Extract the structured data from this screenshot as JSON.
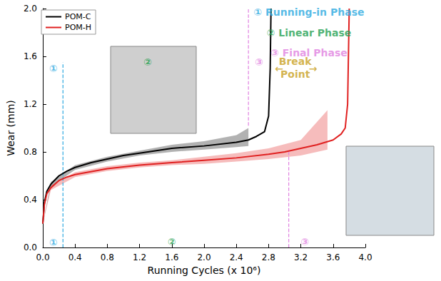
{
  "chart_data": {
    "type": "line",
    "x_label": "Running Cycles (x 10⁶)",
    "y_label": "Wear (mm)",
    "xlim": [
      0,
      4
    ],
    "xticks": [
      {
        "value": 0,
        "label": "0.0"
      },
      0.4,
      0.8,
      1.2,
      1.6,
      {
        "value": 2,
        "label": "2.0"
      },
      2.4,
      2.8,
      3.2,
      3.6,
      {
        "value": 4,
        "label": "4.0"
      }
    ],
    "ylim": [
      0,
      2
    ],
    "yticks": [
      {
        "value": 0,
        "label": "0.0"
      },
      0.4,
      0.8,
      1.2,
      1.6,
      {
        "value": 2,
        "label": "2.0"
      }
    ],
    "grid": false,
    "legend": "upper left",
    "series": [
      {
        "name": "POM-C",
        "color": "#000000",
        "x": [
          0,
          0.02,
          0.05,
          0.1,
          0.2,
          0.3,
          0.4,
          0.6,
          0.8,
          1.0,
          1.2,
          1.6,
          2.0,
          2.4,
          2.55,
          2.65,
          2.75,
          2.8,
          2.82,
          2.83
        ],
        "values": [
          0.2,
          0.38,
          0.47,
          0.53,
          0.6,
          0.64,
          0.67,
          0.71,
          0.74,
          0.77,
          0.79,
          0.83,
          0.85,
          0.88,
          0.9,
          0.93,
          0.97,
          1.1,
          1.5,
          2.0
        ],
        "band": {
          "x": [
            0,
            0.1,
            0.4,
            0.8,
            1.2,
            1.6,
            2.0,
            2.4,
            2.55
          ],
          "lower": [
            0.2,
            0.51,
            0.65,
            0.72,
            0.77,
            0.8,
            0.82,
            0.84,
            0.85
          ],
          "upper": [
            0.2,
            0.55,
            0.69,
            0.76,
            0.81,
            0.86,
            0.89,
            0.94,
            1.0
          ]
        }
      },
      {
        "name": "POM-H",
        "color": "#e02020",
        "x": [
          0,
          0.02,
          0.05,
          0.1,
          0.2,
          0.3,
          0.4,
          0.8,
          1.2,
          1.6,
          2.0,
          2.4,
          2.8,
          3.0,
          3.2,
          3.4,
          3.6,
          3.7,
          3.75,
          3.78,
          3.8
        ],
        "values": [
          0.2,
          0.36,
          0.45,
          0.5,
          0.56,
          0.59,
          0.61,
          0.66,
          0.69,
          0.71,
          0.73,
          0.75,
          0.78,
          0.8,
          0.83,
          0.86,
          0.9,
          0.95,
          1.0,
          1.2,
          2.0
        ],
        "band": {
          "x": [
            0,
            0.1,
            0.4,
            0.8,
            1.2,
            1.6,
            2.0,
            2.4,
            2.8,
            3.2,
            3.53
          ],
          "lower": [
            0.2,
            0.48,
            0.59,
            0.64,
            0.67,
            0.69,
            0.7,
            0.72,
            0.74,
            0.77,
            0.82
          ],
          "upper": [
            0.2,
            0.52,
            0.63,
            0.68,
            0.71,
            0.73,
            0.76,
            0.79,
            0.83,
            0.9,
            1.15
          ]
        }
      }
    ],
    "phase_lines": [
      {
        "x": 0.25,
        "y": [
          0,
          1.55
        ],
        "color": "#29a8e0"
      },
      {
        "x": 2.55,
        "y": [
          1.02,
          2.0
        ],
        "color": "#e080e0"
      },
      {
        "x": 3.05,
        "y": [
          0,
          0.8
        ],
        "color": "#e080e0"
      }
    ],
    "annotations": [
      {
        "text": "① Running-in Phase",
        "x": 3.3,
        "y": 1.97,
        "color": "#29a8e0"
      },
      {
        "text": "② Linear Phase",
        "x": 3.3,
        "y": 1.8,
        "color": "#22a050"
      },
      {
        "text": "③ Final Phase",
        "x": 3.3,
        "y": 1.63,
        "color": "#e080e0"
      },
      {
        "text": "①",
        "x": 0.13,
        "y": 1.5,
        "color": "#29a8e0"
      },
      {
        "text": "②",
        "x": 1.3,
        "y": 1.55,
        "color": "#22a050"
      },
      {
        "text": "③",
        "x": 2.68,
        "y": 1.55,
        "color": "#e080e0"
      },
      {
        "text": "①",
        "x": 0.13,
        "y": 0.04,
        "color": "#29a8e0"
      },
      {
        "text": "②",
        "x": 1.6,
        "y": 0.05,
        "color": "#22a050"
      },
      {
        "text": "③",
        "x": 3.25,
        "y": 0.05,
        "color": "#e080e0"
      },
      {
        "text": "Break",
        "x": 3.13,
        "y": 1.56,
        "color": "#c8a020"
      },
      {
        "text": "Point",
        "x": 3.13,
        "y": 1.45,
        "color": "#c8a020"
      },
      {
        "text": "←",
        "x": 2.93,
        "y": 1.5,
        "color": "#c8a020"
      },
      {
        "text": "→",
        "x": 3.35,
        "y": 1.5,
        "color": "#c8a020"
      }
    ]
  }
}
